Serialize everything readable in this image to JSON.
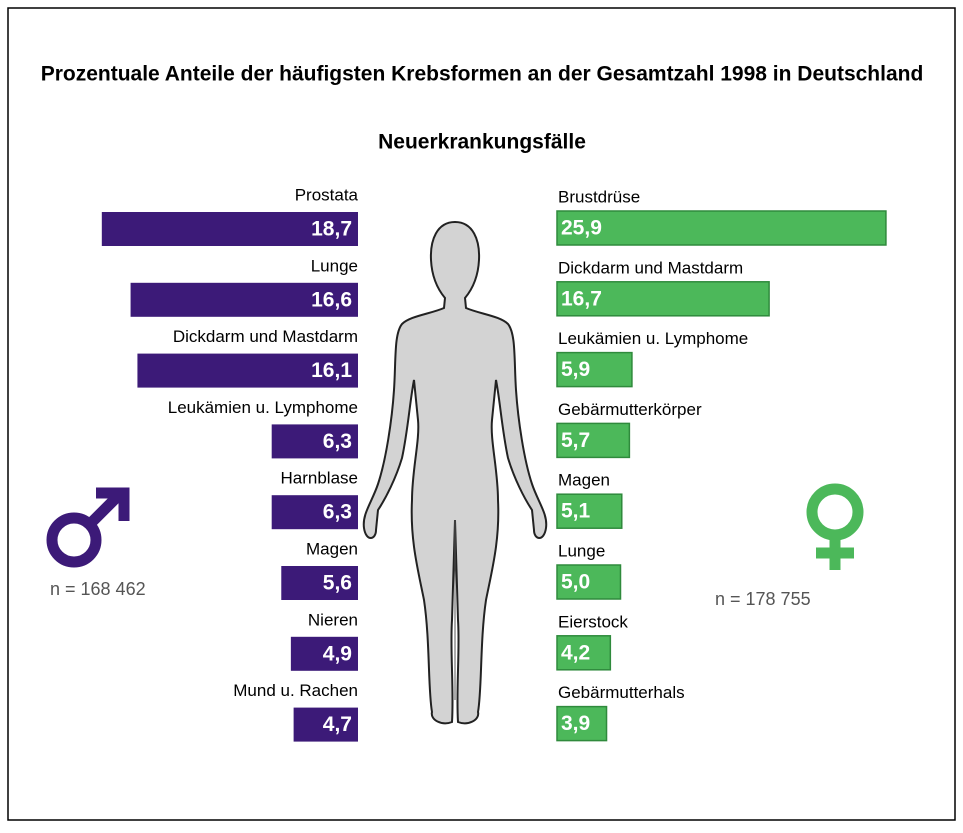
{
  "chart_data": [
    {
      "type": "hbar",
      "title": "Prozentuale Anteile der häufigsten Krebsformen an der Gesamtzahl 1998 in Deutschland",
      "subtitle": "Neuerkrankungsfälle",
      "side": "left",
      "color": "#3c1a78",
      "annotation": "n = 168 462",
      "categories": [
        "Prostata",
        "Lunge",
        "Dickdarm und Mastdarm",
        "Leukämien u. Lymphome",
        "Harnblase",
        "Magen",
        "Nieren",
        "Mund u. Rachen"
      ],
      "values": [
        18.7,
        16.6,
        16.1,
        6.3,
        6.3,
        5.6,
        4.9,
        4.7
      ],
      "value_labels": [
        "18,7",
        "16,6",
        "16,1",
        "6,3",
        "6,3",
        "5,6",
        "4,9",
        "4,7"
      ]
    },
    {
      "type": "hbar",
      "side": "right",
      "color": "#4cb85a",
      "annotation": "n = 178 755",
      "categories": [
        "Brustdrüse",
        "Dickdarm und Mastdarm",
        "Leukämien u. Lymphome",
        "Gebärmutterkörper",
        "Magen",
        "Lunge",
        "Eierstock",
        "Gebärmutterhals"
      ],
      "values": [
        25.9,
        16.7,
        5.9,
        5.7,
        5.1,
        5.0,
        4.2,
        3.9
      ],
      "value_labels": [
        "25,9",
        "16,7",
        "5,9",
        "5,7",
        "5,1",
        "5,0",
        "4,2",
        "3,9"
      ]
    }
  ]
}
